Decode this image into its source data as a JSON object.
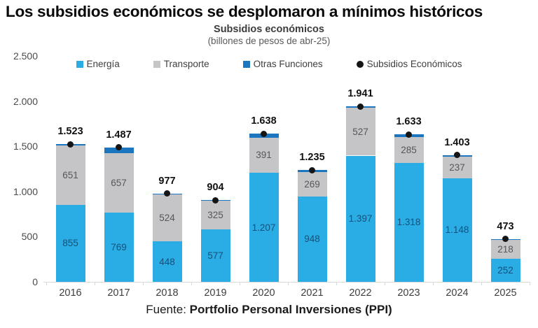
{
  "header": {
    "title": "Los subsidios económicos se desplomaron a mínimos históricos"
  },
  "footer": {
    "prefix": "Fuente: ",
    "source": "Portfolio Personal Inversiones (PPI)"
  },
  "chart_data": {
    "type": "bar",
    "stacked": true,
    "title": "Subsidios económicos",
    "subtitle": "(billones de pesos de abr-25)",
    "xlabel": "",
    "ylabel": "",
    "categories": [
      "2016",
      "2017",
      "2018",
      "2019",
      "2020",
      "2021",
      "2022",
      "2023",
      "2024",
      "2025"
    ],
    "series": [
      {
        "name": "Energía",
        "color": "#29ADE4",
        "label_color": "#17507A",
        "values": [
          855,
          769,
          448,
          577,
          1207,
          948,
          1397,
          1318,
          1148,
          252
        ],
        "labels": [
          "855",
          "769",
          "448",
          "577",
          "1.207",
          "948",
          "1.397",
          "1.318",
          "1.148",
          "252"
        ]
      },
      {
        "name": "Transporte",
        "color": "#C5C4C6",
        "label_color": "#57575B",
        "values": [
          651,
          657,
          524,
          325,
          391,
          269,
          527,
          285,
          237,
          218
        ],
        "labels": [
          "651",
          "657",
          "524",
          "325",
          "391",
          "269",
          "527",
          "285",
          "237",
          "218"
        ]
      },
      {
        "name": "Otras Funciones",
        "color": "#1B76BF",
        "label_color": "",
        "derived_from_totals": true,
        "values": [
          17,
          61,
          5,
          2,
          40,
          18,
          17,
          30,
          18,
          3
        ],
        "labels": [
          "",
          "",
          "",
          "",
          "",
          "",
          "",
          "",
          "",
          ""
        ]
      }
    ],
    "totals": {
      "name": "Subsidios Económicos",
      "marker": "dot",
      "color": "#151515",
      "values": [
        1523,
        1487,
        977,
        904,
        1638,
        1235,
        1941,
        1633,
        1403,
        473
      ],
      "labels": [
        "1.523",
        "1.487",
        "977",
        "904",
        "1.638",
        "1.235",
        "1.941",
        "1.633",
        "1.403",
        "473"
      ]
    },
    "ylim": [
      0,
      2500
    ],
    "yticks": [
      0,
      500,
      1000,
      1500,
      2000,
      2500
    ],
    "ytick_labels": [
      "0",
      "500",
      "1.000",
      "1.500",
      "2.000",
      "2.500"
    ],
    "grid": false,
    "legend_position": "top"
  }
}
